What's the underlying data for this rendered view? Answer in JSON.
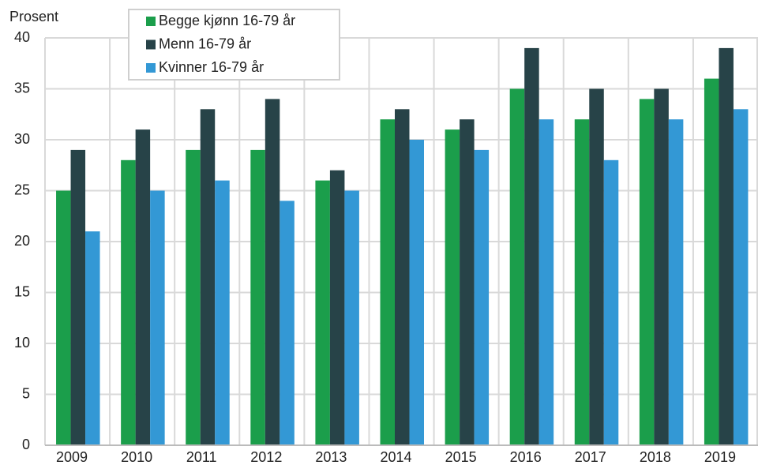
{
  "chart_data": {
    "type": "bar",
    "y_label": "Prosent",
    "categories": [
      "2009",
      "2010",
      "2011",
      "2012",
      "2013",
      "2014",
      "2015",
      "2016",
      "2017",
      "2018",
      "2019"
    ],
    "series": [
      {
        "name": "Begge kjønn 16-79 år",
        "color": "#1b9e4b",
        "values": [
          25,
          28,
          29,
          29,
          26,
          32,
          31,
          35,
          32,
          34,
          36
        ]
      },
      {
        "name": "Menn 16-79 år",
        "color": "#274348",
        "values": [
          29,
          31,
          33,
          34,
          27,
          33,
          32,
          39,
          35,
          35,
          39
        ]
      },
      {
        "name": "Kvinner 16-79 år",
        "color": "#3398d5",
        "values": [
          21,
          25,
          26,
          24,
          25,
          30,
          29,
          32,
          28,
          32,
          33
        ]
      }
    ],
    "ylim": [
      0,
      40
    ],
    "yticks": [
      0,
      5,
      10,
      15,
      20,
      25,
      30,
      35,
      40
    ],
    "grid": true,
    "legend": "top-left"
  }
}
